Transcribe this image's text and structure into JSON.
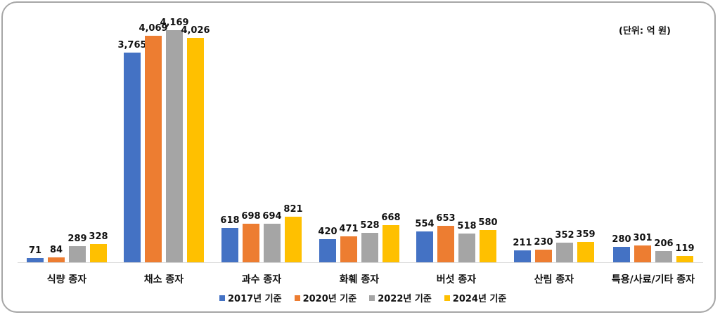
{
  "chart_data": {
    "type": "bar",
    "title": "",
    "unit_note": "(단위: 억 원)",
    "xlabel": "",
    "ylabel": "",
    "ylim": [
      0,
      4200
    ],
    "grid": false,
    "legend_position": "bottom",
    "categories": [
      "식량 종자",
      "채소 종자",
      "과수 종자",
      "화훼 종자",
      "버섯 종자",
      "산림 종자",
      "특용/사료/기타 종자"
    ],
    "series": [
      {
        "name": "2017년 기준",
        "color": "#4472c4",
        "values": [
          71,
          3765,
          618,
          420,
          554,
          211,
          280
        ]
      },
      {
        "name": "2020년 기준",
        "color": "#ed7d31",
        "values": [
          84,
          4069,
          698,
          471,
          653,
          230,
          301
        ]
      },
      {
        "name": "2022년 기준",
        "color": "#a5a5a5",
        "values": [
          289,
          4169,
          694,
          528,
          518,
          352,
          206
        ]
      },
      {
        "name": "2024년 기준",
        "color": "#ffc000",
        "values": [
          328,
          4026,
          821,
          668,
          580,
          359,
          119
        ]
      }
    ],
    "value_labels": [
      [
        "71",
        "3,765",
        "618",
        "420",
        "554",
        "211",
        "280"
      ],
      [
        "84",
        "4,069",
        "698",
        "471",
        "653",
        "230",
        "301"
      ],
      [
        "289",
        "4,169",
        "694",
        "528",
        "518",
        "352",
        "206"
      ],
      [
        "328",
        "4,026",
        "821",
        "668",
        "580",
        "359",
        "119"
      ]
    ]
  }
}
